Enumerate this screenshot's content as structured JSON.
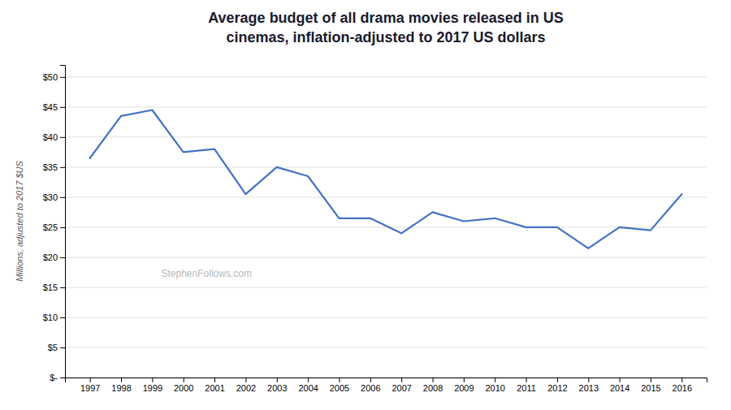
{
  "chart_data": {
    "type": "line",
    "title": "Average budget of all drama movies released in US\ncinemas, inflation-adjusted to 2017 US dollars",
    "ylabel": "Millions, adjusted to 2017 $US",
    "x": [
      1997,
      1998,
      1999,
      2000,
      2001,
      2002,
      2003,
      2004,
      2005,
      2006,
      2007,
      2008,
      2009,
      2010,
      2011,
      2012,
      2013,
      2014,
      2015,
      2016
    ],
    "values": [
      36.5,
      43.5,
      44.5,
      37.5,
      38.0,
      30.5,
      35.0,
      33.5,
      26.5,
      26.5,
      24.0,
      27.5,
      26.0,
      26.5,
      25.0,
      25.0,
      21.5,
      25.0,
      24.5,
      30.5
    ],
    "color": "#4472C4",
    "xlim": [
      1996.2,
      2016.8
    ],
    "xticks": [
      1997,
      1998,
      1999,
      2000,
      2001,
      2002,
      2003,
      2004,
      2005,
      2006,
      2007,
      2008,
      2009,
      2010,
      2011,
      2012,
      2013,
      2014,
      2015,
      2016
    ],
    "ylim": [
      0,
      52
    ],
    "yticks": [
      {
        "value": 0,
        "label": "$-"
      },
      {
        "value": 5,
        "label": "$5"
      },
      {
        "value": 10,
        "label": "$10"
      },
      {
        "value": 15,
        "label": "$15"
      },
      {
        "value": 20,
        "label": "$20"
      },
      {
        "value": 25,
        "label": "$25"
      },
      {
        "value": 30,
        "label": "$30"
      },
      {
        "value": 35,
        "label": "$35"
      },
      {
        "value": 40,
        "label": "$40"
      },
      {
        "value": 45,
        "label": "$45"
      },
      {
        "value": 50,
        "label": "$50"
      }
    ],
    "grid": true,
    "annotations": [
      "StephenFollows.com"
    ]
  }
}
